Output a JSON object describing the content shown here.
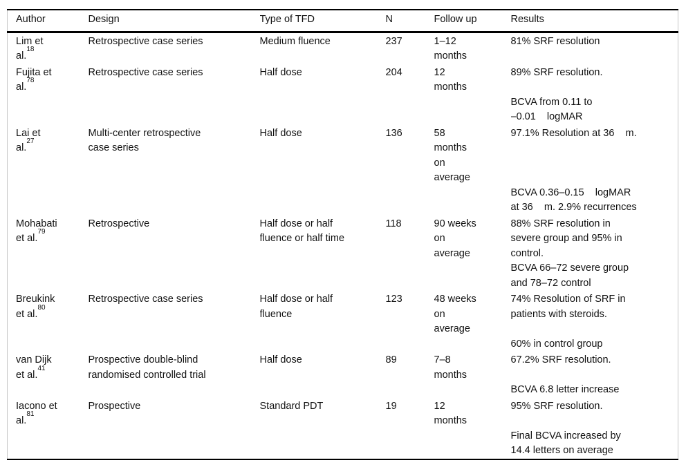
{
  "table": {
    "columns": [
      {
        "key": "author",
        "label": "Author"
      },
      {
        "key": "design",
        "label": "Design"
      },
      {
        "key": "tfd",
        "label": "Type of TFD"
      },
      {
        "key": "n",
        "label": "N"
      },
      {
        "key": "followup",
        "label": "Follow up"
      },
      {
        "key": "results",
        "label": "Results"
      }
    ],
    "rows": [
      {
        "author": {
          "line1": "Lim et",
          "line2": "al.",
          "ref": "18"
        },
        "design": "Retrospective case series",
        "tfd": "Medium fluence",
        "n": "237",
        "followup": "1–12\nmonths",
        "results": "81% SRF resolution",
        "extra": ""
      },
      {
        "author": {
          "line1": "Fujita et",
          "line2": "al.",
          "ref": "78"
        },
        "design": "Retrospective case series",
        "tfd": "Half dose",
        "n": "204",
        "followup": "12\nmonths",
        "results": "89% SRF resolution.",
        "extra": "BCVA from 0.11 to\n–0.01    logMAR"
      },
      {
        "author": {
          "line1": "Lai et",
          "line2": "al.",
          "ref": "27"
        },
        "design": "Multi-center retrospective\ncase series",
        "tfd": "Half dose",
        "n": "136",
        "followup": "58\nmonths\non\naverage",
        "results": "97.1% Resolution at 36    m.",
        "extra": "BCVA 0.36–0.15    logMAR\nat 36    m. 2.9% recurrences"
      },
      {
        "author": {
          "line1": "Mohabati",
          "line2": "et al.",
          "ref": "79"
        },
        "design": "Retrospective",
        "tfd": "Half dose or half\nfluence or half time",
        "n": "118",
        "followup": "90 weeks\non\naverage",
        "results": "88% SRF resolution in\nsevere group and 95% in\ncontrol.",
        "extra": "BCVA 66–72 severe group\nand 78–72 control"
      },
      {
        "author": {
          "line1": "Breukink",
          "line2": "et al.",
          "ref": "80"
        },
        "design": "Retrospective case series",
        "tfd": "Half dose or half\nfluence",
        "n": "123",
        "followup": "48 weeks\non\naverage",
        "results": "74% Resolution of SRF in\npatients with steroids.",
        "extra": "60% in control group"
      },
      {
        "author": {
          "line1": "van Dijk",
          "line2": "et al.",
          "ref": "41"
        },
        "design": "Prospective double-blind\nrandomised controlled trial",
        "tfd": "Half dose",
        "n": "89",
        "followup": "7–8\nmonths",
        "results": "67.2% SRF resolution.",
        "extra": "BCVA 6.8 letter increase"
      },
      {
        "author": {
          "line1": "Iacono et",
          "line2": "al.",
          "ref": "81"
        },
        "design": "Prospective",
        "tfd": "Standard PDT",
        "n": "19",
        "followup": "12\nmonths",
        "results": "95% SRF resolution.",
        "extra": "Final BCVA increased by\n14.4 letters on average"
      }
    ]
  }
}
